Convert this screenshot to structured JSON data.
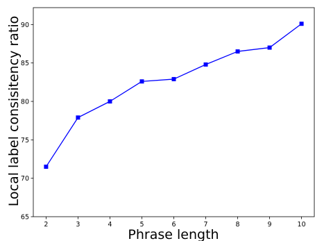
{
  "chart_data": {
    "type": "line",
    "title": "",
    "xlabel": "Phrase length",
    "ylabel": "Local label consisitency ratio",
    "x": [
      2,
      3,
      4,
      5,
      6,
      7,
      8,
      9,
      10
    ],
    "series": [
      {
        "values": [
          71.5,
          77.9,
          80.0,
          82.6,
          82.9,
          84.8,
          86.5,
          87.0,
          90.1
        ],
        "color": "#0000ff",
        "marker": "square"
      }
    ],
    "xlim": [
      1.6,
      10.4
    ],
    "ylim": [
      65,
      92.2
    ],
    "xticks": [
      "2",
      "3",
      "4",
      "5",
      "6",
      "7",
      "8",
      "9",
      "10"
    ],
    "yticks": [
      "65",
      "70",
      "75",
      "80",
      "85",
      "90"
    ],
    "grid": false,
    "legend": "none"
  }
}
